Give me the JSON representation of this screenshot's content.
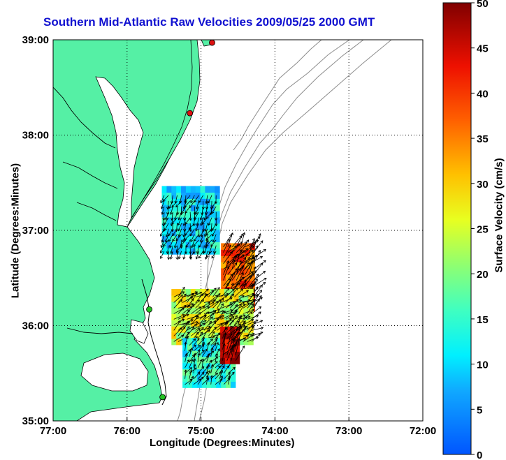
{
  "title": "Southern Mid-Atlantic Raw Velocities 2009/05/25 2000 GMT",
  "xlabel": "Longitude (Degrees:Minutes)",
  "ylabel": "Latitude (Degrees:Minutes)",
  "colorbar_label": "Surface Velocity (cm/s)",
  "x_ticks": [
    "77:00",
    "76:00",
    "75:00",
    "74:00",
    "73:00",
    "72:00"
  ],
  "y_ticks": [
    "35:00",
    "36:00",
    "37:00",
    "38:00",
    "39:00"
  ],
  "colorbar_ticks": [
    "0",
    "5",
    "10",
    "15",
    "20",
    "25",
    "30",
    "35",
    "40",
    "45",
    "50"
  ],
  "colors": {
    "land": "#55f0a5",
    "title": "#1010d0",
    "bathymetry": "#8c8c8c",
    "site_green": "#22c022",
    "site_red": "#dd1010"
  },
  "chart_data": {
    "type": "vector-field-map",
    "xlim": [
      -77,
      -72
    ],
    "ylim": [
      35,
      39
    ],
    "colorbar_range": [
      0,
      50
    ],
    "grid": true,
    "radar_sites": [
      {
        "lon": -74.85,
        "lat": 38.97,
        "status": "red"
      },
      {
        "lon": -75.15,
        "lat": 38.23,
        "status": "red"
      },
      {
        "lon": -75.7,
        "lat": 36.17,
        "status": "green"
      },
      {
        "lon": -75.52,
        "lat": 35.25,
        "status": "green"
      }
    ],
    "regions": [
      {
        "name": "north-patch",
        "lon": [
          -75.53,
          -74.79
        ],
        "lat": [
          36.75,
          37.4
        ],
        "speed": 11,
        "dir": 200
      },
      {
        "name": "east-band",
        "lon": [
          -74.73,
          -74.28
        ],
        "lat": [
          36.15,
          36.85
        ],
        "speed": 38,
        "dir": 40
      },
      {
        "name": "mid-patch",
        "lon": [
          -75.4,
          -74.3
        ],
        "lat": [
          35.8,
          36.35
        ],
        "speed": 25,
        "dir": 55
      },
      {
        "name": "south-patch",
        "lon": [
          -75.25,
          -74.6
        ],
        "lat": [
          35.35,
          35.85
        ],
        "speed": 14,
        "dir": 30
      },
      {
        "name": "red-core",
        "lon": [
          -74.74,
          -74.5
        ],
        "lat": [
          35.6,
          35.95
        ],
        "speed": 47,
        "dir": 30
      }
    ]
  }
}
